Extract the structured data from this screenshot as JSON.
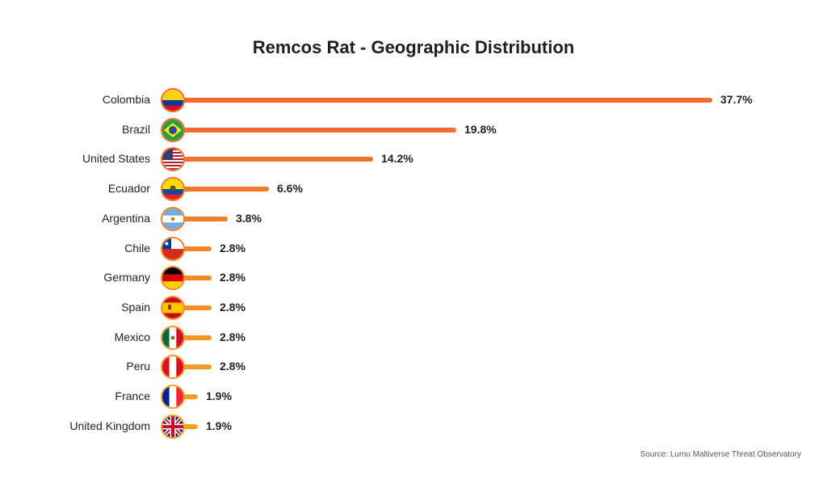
{
  "chart_data": {
    "type": "bar",
    "orientation": "horizontal",
    "title": "Remcos Rat - Geographic Distribution",
    "xlabel": "",
    "ylabel": "",
    "categories": [
      "Colombia",
      "Brazil",
      "United States",
      "Ecuador",
      "Argentina",
      "Chile",
      "Germany",
      "Spain",
      "Mexico",
      "Peru",
      "France",
      "United Kingdom"
    ],
    "values": [
      37.7,
      19.8,
      14.2,
      6.6,
      3.8,
      2.8,
      2.8,
      2.8,
      2.8,
      2.8,
      1.9,
      1.9
    ],
    "value_labels": [
      "37.7%",
      "19.8%",
      "14.2%",
      "6.6%",
      "3.8%",
      "2.8%",
      "2.8%",
      "2.8%",
      "2.8%",
      "2.8%",
      "1.9%",
      "1.9%"
    ],
    "unit": "%",
    "grid": false,
    "legend": "none",
    "source": "Source: Lumu Maltiverse Threat Observatory"
  },
  "colors": {
    "bar_top": "#f26b2c",
    "bar_bottom": "#f5a11e"
  },
  "rows": [
    {
      "country": "Colombia",
      "value": "37.7%",
      "flag": "colombia-flag-icon",
      "bar_end": 882,
      "color": "#f26a2e"
    },
    {
      "country": "Brazil",
      "value": "19.8%",
      "flag": "brazil-flag-icon",
      "bar_end": 565,
      "color": "#f36d2c"
    },
    {
      "country": "United States",
      "value": "14.2%",
      "flag": "us-flag-icon",
      "bar_end": 462,
      "color": "#f3722b"
    },
    {
      "country": "Ecuador",
      "value": "6.6%",
      "flag": "ecuador-flag-icon",
      "bar_end": 333,
      "color": "#f37829"
    },
    {
      "country": "Argentina",
      "value": "3.8%",
      "flag": "argentina-flag-icon",
      "bar_end": 282,
      "color": "#f47e27"
    },
    {
      "country": "Chile",
      "value": "2.8%",
      "flag": "chile-flag-icon",
      "bar_end": 262,
      "color": "#f48426"
    },
    {
      "country": "Germany",
      "value": "2.8%",
      "flag": "germany-flag-icon",
      "bar_end": 262,
      "color": "#f48a25"
    },
    {
      "country": "Spain",
      "value": "2.8%",
      "flag": "spain-flag-icon",
      "bar_end": 262,
      "color": "#f49024"
    },
    {
      "country": "Mexico",
      "value": "2.8%",
      "flag": "mexico-flag-icon",
      "bar_end": 262,
      "color": "#f59622"
    },
    {
      "country": "Peru",
      "value": "2.8%",
      "flag": "peru-flag-icon",
      "bar_end": 262,
      "color": "#f59a21"
    },
    {
      "country": "France",
      "value": "1.9%",
      "flag": "france-flag-icon",
      "bar_end": 245,
      "color": "#f59e20"
    },
    {
      "country": "United Kingdom",
      "value": "1.9%",
      "flag": "uk-flag-icon",
      "bar_end": 245,
      "color": "#f5a11e"
    }
  ]
}
